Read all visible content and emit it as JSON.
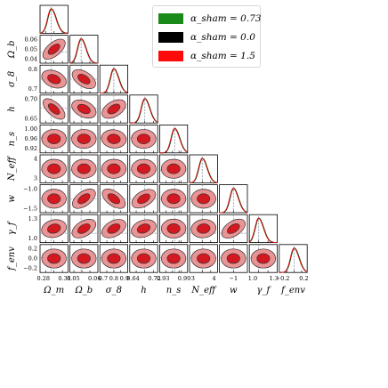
{
  "chart_data": {
    "type": "corner",
    "parameters": [
      {
        "key": "Om",
        "label": "Ω_m",
        "range": [
          0.26,
          0.36
        ],
        "ticks": [
          0.28,
          0.31,
          0.34
        ],
        "truth": 0.3
      },
      {
        "key": "Ob",
        "label": "Ω_b",
        "range": [
          0.035,
          0.07
        ],
        "ticks": [
          0.04,
          0.05,
          0.06
        ],
        "truth": 0.049
      },
      {
        "key": "s8",
        "label": "σ_8",
        "range": [
          0.6,
          1.0
        ],
        "ticks": [
          0.7,
          0.8,
          0.9
        ],
        "truth": 0.8
      },
      {
        "key": "h",
        "label": "h",
        "range": [
          0.61,
          0.74
        ],
        "ticks": [
          0.64,
          0.68,
          0.72
        ],
        "truth": 0.68
      },
      {
        "key": "ns",
        "label": "n_s",
        "range": [
          0.9,
          1.03
        ],
        "ticks": [
          0.93,
          0.96,
          0.99,
          1.0
        ],
        "truth": 0.97
      },
      {
        "key": "Neff",
        "label": "N_eff",
        "range": [
          1.5,
          4.8
        ],
        "ticks": [
          3,
          4
        ],
        "truth": 3.0
      },
      {
        "key": "w",
        "label": "w",
        "range": [
          -1.6,
          -0.4
        ],
        "ticks": [
          -1.0
        ],
        "truth": -1.0
      },
      {
        "key": "gf",
        "label": "γ_f",
        "range": [
          0.7,
          1.6
        ],
        "ticks": [
          1.0,
          1.3
        ],
        "truth": 1.0
      },
      {
        "key": "fenv",
        "label": "f_env",
        "range": [
          -0.4,
          0.35
        ],
        "ticks": [
          -0.2,
          0.0,
          0.2
        ],
        "truth": 0.0
      }
    ],
    "tick_labels": {
      "x": [
        [
          "0.28",
          "0.31"
        ],
        [
          "0.05",
          "0.06"
        ],
        [
          "0.7",
          "0.8",
          "0.9"
        ],
        [
          "0.64",
          "0.72"
        ],
        [
          "0.93",
          "0.99"
        ],
        [
          "3",
          "4"
        ],
        [
          "−1"
        ],
        [
          "1.0",
          "1.3"
        ],
        [
          "−0.2",
          "0.2"
        ]
      ],
      "y": [
        [],
        [
          "0.06",
          "0.05",
          "0.04"
        ],
        [
          "0.8",
          "0.7"
        ],
        [
          "0.70",
          "0.65"
        ],
        [
          "1.00",
          "0.96",
          "0.92"
        ],
        [
          "4",
          "3"
        ],
        [
          "−1.0",
          "−1.5"
        ],
        [
          "1.3",
          "1.0"
        ],
        [
          "0.2",
          "0.0",
          "−0.2"
        ]
      ]
    },
    "axis_labels": [
      "Ω_m",
      "Ω_b",
      "σ_8",
      "h",
      "n_s",
      "N_eff",
      "w",
      "γ_f",
      "f_env"
    ],
    "correlations": {
      "Ob|Om": 0.7,
      "s8|Om": -0.35,
      "s8|Ob": -0.55,
      "h|Om": -0.75,
      "h|Ob": -0.4,
      "h|s8": 0.5,
      "ns|s8": -0.1,
      "w|Ob": 0.6,
      "w|s8": -0.6,
      "w|h": 0.5,
      "gf|Om": 0.2,
      "gf|Ob": 0.5,
      "gf|s8": 0.45,
      "gf|h": 0.3,
      "gf|w": 0.55,
      "gf|Neff": 0.1
    },
    "series": [
      {
        "name": "α_sham = 0.73",
        "color": "#1a8a1a"
      },
      {
        "name": "α_sham = 0.0",
        "color": "#000000"
      },
      {
        "name": "α_sham = 1.5",
        "color": "#e8141a"
      }
    ],
    "legend_placement": "top-right"
  },
  "legend": {
    "items": [
      {
        "label": "α_sham = 0.73",
        "color": "#1a8a1a"
      },
      {
        "label": "α_sham = 0.0",
        "color": "#000000"
      },
      {
        "label": "α_sham = 1.5",
        "color": "#ff0a0a"
      }
    ]
  }
}
